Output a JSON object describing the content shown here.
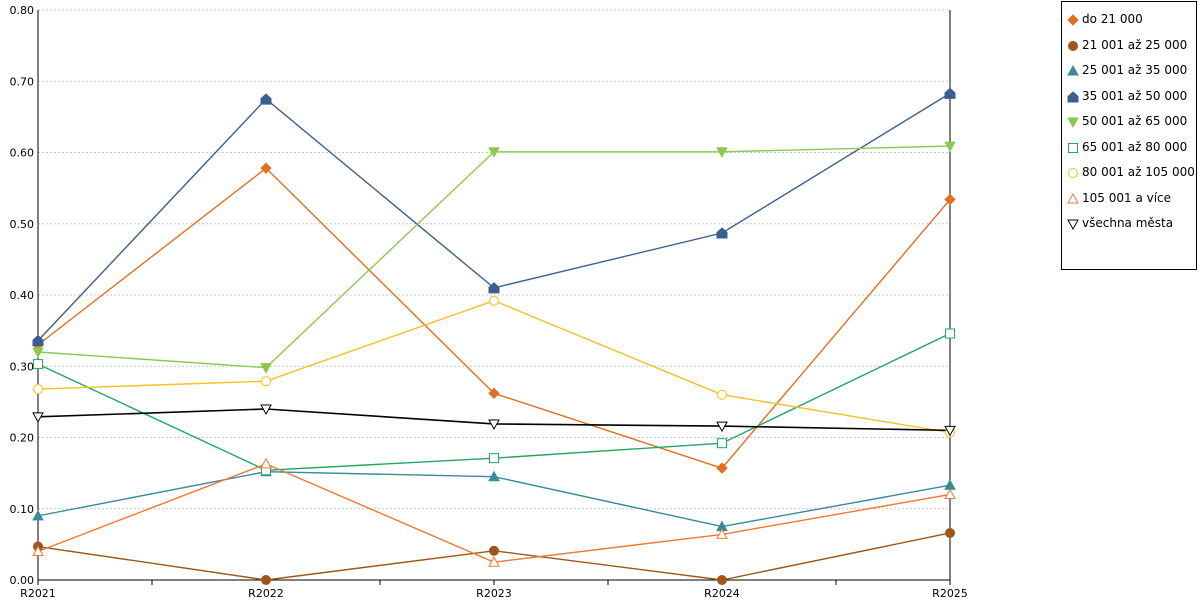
{
  "chart_data": {
    "type": "line",
    "title": "",
    "xlabel": "",
    "ylabel": "",
    "categories": [
      "R2021",
      "R2022",
      "R2023",
      "R2024",
      "R2025"
    ],
    "ylim": [
      0,
      0.8
    ],
    "y_ticks": [
      "0.00",
      "0.10",
      "0.20",
      "0.30",
      "0.40",
      "0.50",
      "0.60",
      "0.70",
      "0.80"
    ],
    "grid": "horizontal dotted",
    "legend_position": "right",
    "series": [
      {
        "name": "do 21 000",
        "color": "#e07020",
        "marker": "diamond",
        "filled": true,
        "values": [
          0.33,
          0.578,
          0.262,
          0.157,
          0.534
        ]
      },
      {
        "name": "21 001 až 25 000",
        "color": "#a0561a",
        "marker": "circle",
        "filled": true,
        "values": [
          0.047,
          0.0,
          0.041,
          0.0,
          0.066
        ]
      },
      {
        "name": "25 001 až 35 000",
        "color": "#3a8a9a",
        "marker": "triangle-up",
        "filled": true,
        "values": [
          0.09,
          0.152,
          0.145,
          0.075,
          0.133
        ]
      },
      {
        "name": "35 001 až 50 000",
        "color": "#3a5f8e",
        "marker": "house",
        "filled": true,
        "values": [
          0.336,
          0.675,
          0.41,
          0.487,
          0.683
        ]
      },
      {
        "name": "50 001 až 65 000",
        "color": "#8cc850",
        "marker": "triangle-down",
        "filled": true,
        "values": [
          0.32,
          0.298,
          0.601,
          0.601,
          0.609
        ]
      },
      {
        "name": "65 001 až 80 000",
        "color": "#20a860",
        "marker": "square",
        "filled": false,
        "values": [
          0.303,
          0.154,
          0.171,
          0.192,
          0.346
        ]
      },
      {
        "name": "80 001 až 105 000",
        "color": "#f5c020",
        "marker": "circle",
        "filled": false,
        "values": [
          0.268,
          0.279,
          0.392,
          0.26,
          0.207
        ]
      },
      {
        "name": "105 001 a více",
        "color": "#f07830",
        "marker": "triangle-up",
        "filled": false,
        "values": [
          0.04,
          0.163,
          0.025,
          0.064,
          0.12
        ]
      },
      {
        "name": "všechna města",
        "color": "#000000",
        "marker": "triangle-down",
        "filled": false,
        "values": [
          0.229,
          0.24,
          0.219,
          0.216,
          0.21
        ]
      }
    ]
  }
}
